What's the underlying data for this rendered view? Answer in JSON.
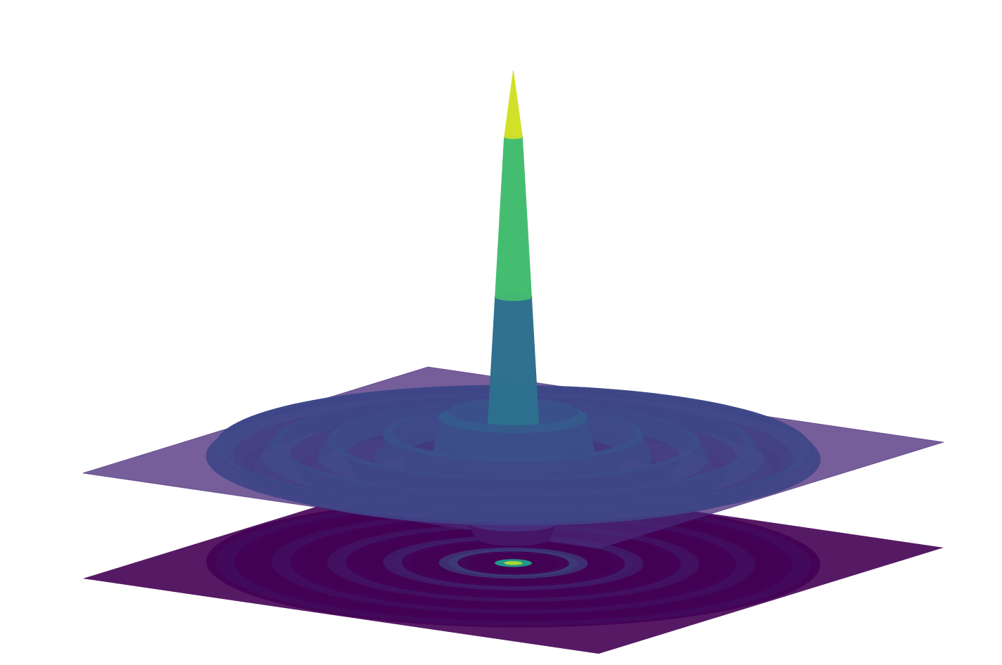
{
  "chart_data": {
    "type": "surface",
    "r": [
      0,
      0.03,
      0.06,
      0.09,
      0.12,
      0.15,
      0.18,
      0.21,
      0.24,
      0.27,
      0.3,
      0.33,
      0.36,
      0.39,
      0.42,
      0.45,
      0.48,
      0.51,
      0.54,
      0.57,
      0.6,
      0.63,
      0.66,
      0.69,
      0.72,
      0.75,
      0.78,
      0.81,
      0.84,
      0.87,
      0.9,
      0.93,
      0.96,
      0.99
    ],
    "values": [
      1,
      0.827,
      0.414,
      0,
      -0.207,
      -0.165,
      0,
      0.118,
      0.103,
      0,
      -0.0827,
      -0.0752,
      0,
      0.0636,
      0.0591,
      0,
      -0.0517,
      -0.0486,
      0,
      0.0435,
      0.0413,
      0,
      -0.0376,
      -0.036,
      0,
      0.0331,
      0.0318,
      0,
      -0.0295,
      -0.0285,
      0,
      0.0267,
      0.0258,
      0
    ],
    "zlim": [
      -0.25,
      1
    ],
    "colorscale": [
      "#440154",
      "#482878",
      "#3e4989",
      "#31688e",
      "#26828e",
      "#1f9e89",
      "#35b779",
      "#6ece58",
      "#b5de2b",
      "#fde725"
    ],
    "contour_projection": true
  }
}
